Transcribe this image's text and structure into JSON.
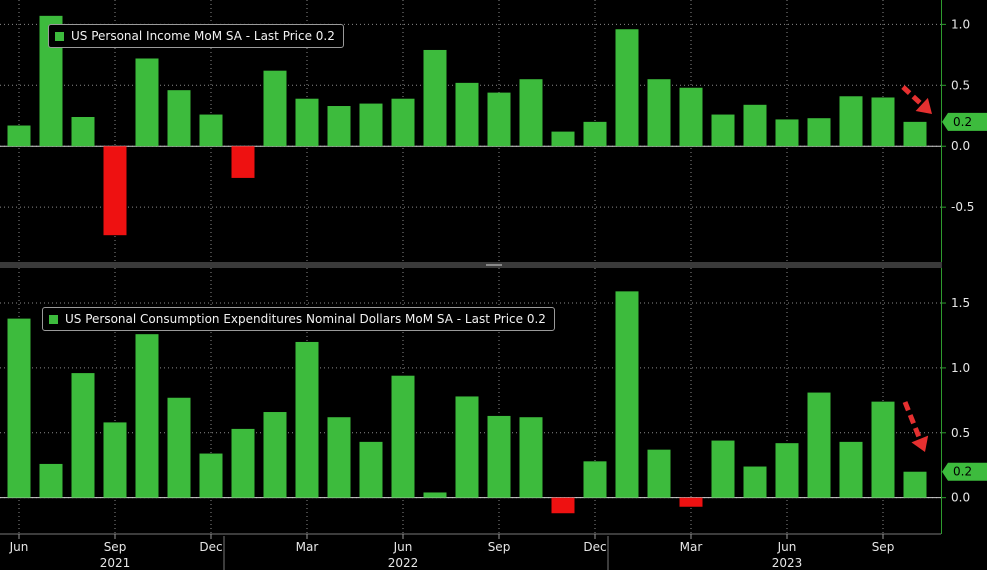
{
  "chart_data": [
    {
      "type": "bar",
      "title": "US Personal Income MoM SA - Last Price 0.2",
      "ylim": [
        -0.95,
        1.2
      ],
      "yticks": [
        "1.0",
        "0.5",
        "0.0",
        "-0.5"
      ],
      "ytick_values": [
        1.0,
        0.5,
        0.0,
        -0.5
      ],
      "last_price_label": "0.2",
      "last_price": 0.2,
      "grid": true,
      "legend": "top-left",
      "values": [
        0.17,
        1.07,
        0.24,
        -0.73,
        0.72,
        0.46,
        0.26,
        -0.26,
        0.62,
        0.39,
        0.33,
        0.35,
        0.39,
        0.79,
        0.52,
        0.44,
        0.55,
        0.12,
        0.2,
        0.96,
        0.55,
        0.48,
        0.26,
        0.34,
        0.22,
        0.23,
        0.41,
        0.4,
        0.2
      ]
    },
    {
      "type": "bar",
      "title": "US Personal Consumption Expenditures Nominal Dollars MoM SA - Last Price 0.2",
      "ylim": [
        -0.28,
        1.77
      ],
      "yticks": [
        "1.5",
        "1.0",
        "0.5",
        "0.0"
      ],
      "ytick_values": [
        1.5,
        1.0,
        0.5,
        0.0
      ],
      "last_price_label": "0.2",
      "last_price": 0.2,
      "grid": true,
      "legend": "top-left",
      "values": [
        1.38,
        0.26,
        0.96,
        0.58,
        1.26,
        0.77,
        0.34,
        0.53,
        0.66,
        1.2,
        0.62,
        0.43,
        0.94,
        0.04,
        0.78,
        0.63,
        0.62,
        -0.12,
        0.28,
        1.59,
        0.37,
        -0.07,
        0.44,
        0.24,
        0.42,
        0.81,
        0.43,
        0.74,
        0.2
      ]
    }
  ],
  "x_axis": {
    "month_labels": [
      {
        "label": "Jun",
        "index": 0
      },
      {
        "label": "Sep",
        "index": 3
      },
      {
        "label": "Dec",
        "index": 6
      },
      {
        "label": "Mar",
        "index": 9
      },
      {
        "label": "Jun",
        "index": 12
      },
      {
        "label": "Sep",
        "index": 15
      },
      {
        "label": "Dec",
        "index": 18
      },
      {
        "label": "Mar",
        "index": 21
      },
      {
        "label": "Jun",
        "index": 24
      },
      {
        "label": "Sep",
        "index": 27
      }
    ],
    "year_labels": [
      {
        "label": "2021",
        "index": 3
      },
      {
        "label": "2022",
        "index": 12
      },
      {
        "label": "2023",
        "index": 24
      }
    ],
    "year_boundaries": [
      6.5,
      18.5
    ]
  },
  "colors": {
    "positive": "#3dbb3d",
    "negative": "#ee1111",
    "arrow": "#e53030",
    "grid": "#8a8a8a",
    "axis": "#2e9b2e",
    "text": "#e6e6e6",
    "background": "#000000"
  }
}
